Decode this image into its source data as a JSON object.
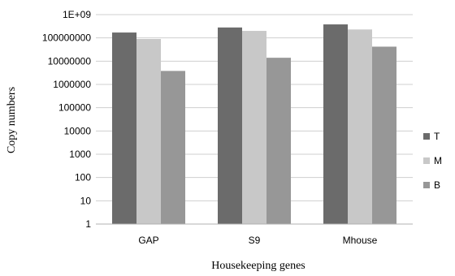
{
  "chart_data": {
    "type": "bar",
    "title": "",
    "xlabel": "Housekeeping genes",
    "ylabel": "Copy numbers",
    "yscale": "log10",
    "ylim": [
      1,
      1000000000
    ],
    "yticks": [
      "1",
      "10",
      "100",
      "1000",
      "10000",
      "100000",
      "1000000",
      "10000000",
      "100000000",
      "1E+09"
    ],
    "categories": [
      "GAP",
      "S9",
      "Mhouse"
    ],
    "series": [
      {
        "name": "T",
        "color": "#6b6b6b",
        "values": [
          170000000,
          280000000,
          380000000
        ]
      },
      {
        "name": "M",
        "color": "#c8c8c8",
        "values": [
          90000000,
          200000000,
          230000000
        ]
      },
      {
        "name": "B",
        "color": "#979797",
        "values": [
          3800000,
          14000000,
          42000000
        ]
      }
    ],
    "grid": true,
    "legend_position": "right"
  }
}
